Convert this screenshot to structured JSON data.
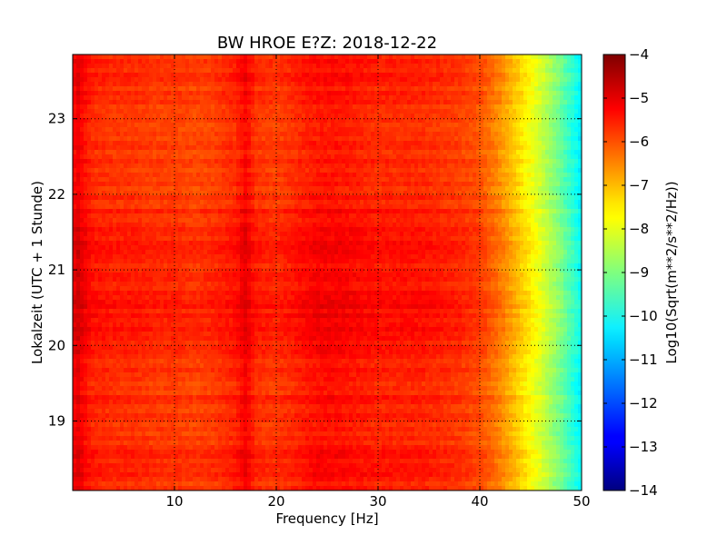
{
  "chart_data": {
    "type": "heatmap",
    "title": "BW HROE E?Z: 2018-12-22",
    "xlabel": "Frequency [Hz]",
    "ylabel": "Lokalzeit (UTC + 1 Stunde)",
    "xlim": [
      0,
      50
    ],
    "ylim": [
      23.85,
      18.08
    ],
    "xticks": [
      10,
      20,
      30,
      40,
      50
    ],
    "yticks": [
      19,
      20,
      21,
      22,
      23
    ],
    "grid": true,
    "colormap": "jet",
    "colorbar": {
      "label": "Log10(Sqrt(m**2/s**2/Hz))",
      "range": [
        -14,
        -4
      ],
      "ticks": [
        -4,
        -5,
        -6,
        -7,
        -8,
        -9,
        -10,
        -11,
        -12,
        -13,
        -14
      ]
    },
    "frequency_profile": {
      "frequency_hz": [
        0,
        0.5,
        1,
        2,
        4,
        6,
        8,
        10,
        12,
        14,
        16,
        17,
        18,
        20,
        22,
        24,
        26,
        28,
        30,
        32,
        34,
        36,
        38,
        40,
        41,
        42,
        43,
        44,
        45,
        46,
        47,
        48,
        49,
        50
      ],
      "log10_amplitude": [
        -5.3,
        -5.0,
        -5.3,
        -5.6,
        -5.7,
        -5.7,
        -5.8,
        -5.8,
        -5.9,
        -5.8,
        -5.6,
        -5.2,
        -5.7,
        -5.8,
        -5.6,
        -5.4,
        -5.4,
        -5.5,
        -5.6,
        -5.6,
        -5.6,
        -5.7,
        -5.8,
        -6.0,
        -6.3,
        -6.6,
        -7.0,
        -7.4,
        -7.8,
        -8.2,
        -8.7,
        -9.2,
        -9.8,
        -10.4
      ]
    },
    "time_profile": {
      "hour": [
        18.08,
        18.5,
        19.0,
        19.5,
        20.0,
        20.3,
        20.7,
        21.0,
        21.5,
        22.0,
        22.5,
        23.0,
        23.5,
        23.85
      ],
      "log10_offset": [
        0.05,
        0.1,
        0.0,
        0.05,
        0.1,
        0.3,
        0.25,
        0.15,
        0.2,
        0.0,
        -0.1,
        -0.05,
        0.0,
        0.05
      ]
    }
  }
}
